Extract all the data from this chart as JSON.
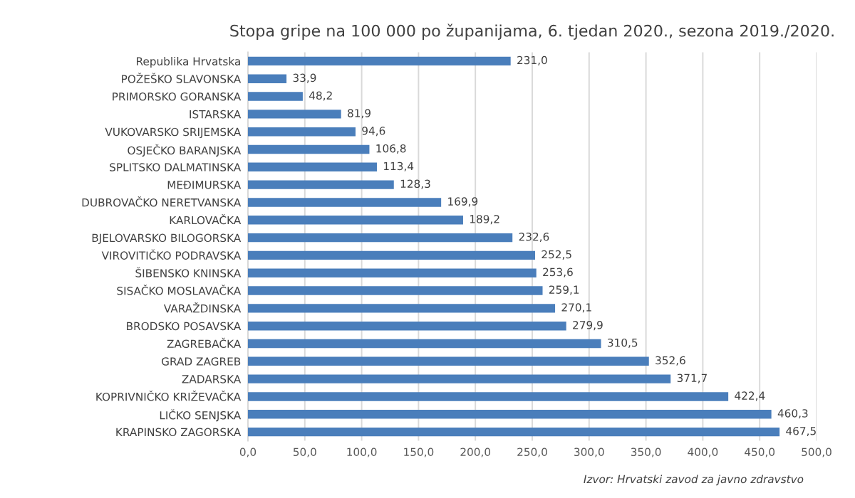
{
  "chart_data": {
    "type": "bar",
    "orientation": "horizontal",
    "title": "Stopa gripe na 100 000 po županijama, 6. tjedan 2020., sezona 2019./2020.",
    "categories": [
      "Republika Hrvatska",
      "POŽEŠKO SLAVONSKA",
      "PRIMORSKO GORANSKA",
      "ISTARSKA",
      "VUKOVARSKO SRIJEMSKA",
      "OSJEČKO BARANJSKA",
      "SPLITSKO DALMATINSKA",
      "MEĐIMURSKA",
      "DUBROVAČKO NERETVANSKA",
      "KARLOVAČKA",
      "BJELOVARSKO BILOGORSKA",
      "VIROVITIČKO PODRAVSKA",
      "ŠIBENSKO KNINSKA",
      "SISAČKO MOSLAVAČKA",
      "VARAŽDINSKA",
      "BRODSKO POSAVSKA",
      "ZAGREBAČKA",
      "GRAD ZAGREB",
      "ZADARSKA",
      "KOPRIVNIČKO KRIŽEVAČKA",
      "LIČKO SENJSKA",
      "KRAPINSKO ZAGORSKA"
    ],
    "values": [
      231.0,
      33.9,
      48.2,
      81.9,
      94.6,
      106.8,
      113.4,
      128.3,
      169.9,
      189.2,
      232.6,
      252.5,
      253.6,
      259.1,
      270.1,
      279.9,
      310.5,
      352.6,
      371.7,
      422.4,
      460.3,
      467.5
    ],
    "value_labels": [
      "231,0",
      "33,9",
      "48,2",
      "81,9",
      "94,6",
      "106,8",
      "113,4",
      "128,3",
      "169,9",
      "189,2",
      "232,6",
      "252,5",
      "253,6",
      "259,1",
      "270,1",
      "279,9",
      "310,5",
      "352,6",
      "371,7",
      "422,4",
      "460,3",
      "467,5"
    ],
    "color": "#4a7ebb",
    "xlim": [
      0,
      500
    ],
    "xticks": [
      {
        "value": 0,
        "label": "0,0"
      },
      {
        "value": 50,
        "label": "50,0"
      },
      {
        "value": 100,
        "label": "100,0"
      },
      {
        "value": 150,
        "label": "150,0"
      },
      {
        "value": 200,
        "label": "200,0"
      },
      {
        "value": 250,
        "label": "250,0"
      },
      {
        "value": 300,
        "label": "300,0"
      },
      {
        "value": 350,
        "label": "350,0"
      },
      {
        "value": 400,
        "label": "400,0"
      },
      {
        "value": 450,
        "label": "450,0"
      },
      {
        "value": 500,
        "label": "500,0"
      }
    ],
    "grid": "x",
    "annotations": [
      "Izvor: Hrvatski zavod za javno zdravstvo"
    ]
  }
}
